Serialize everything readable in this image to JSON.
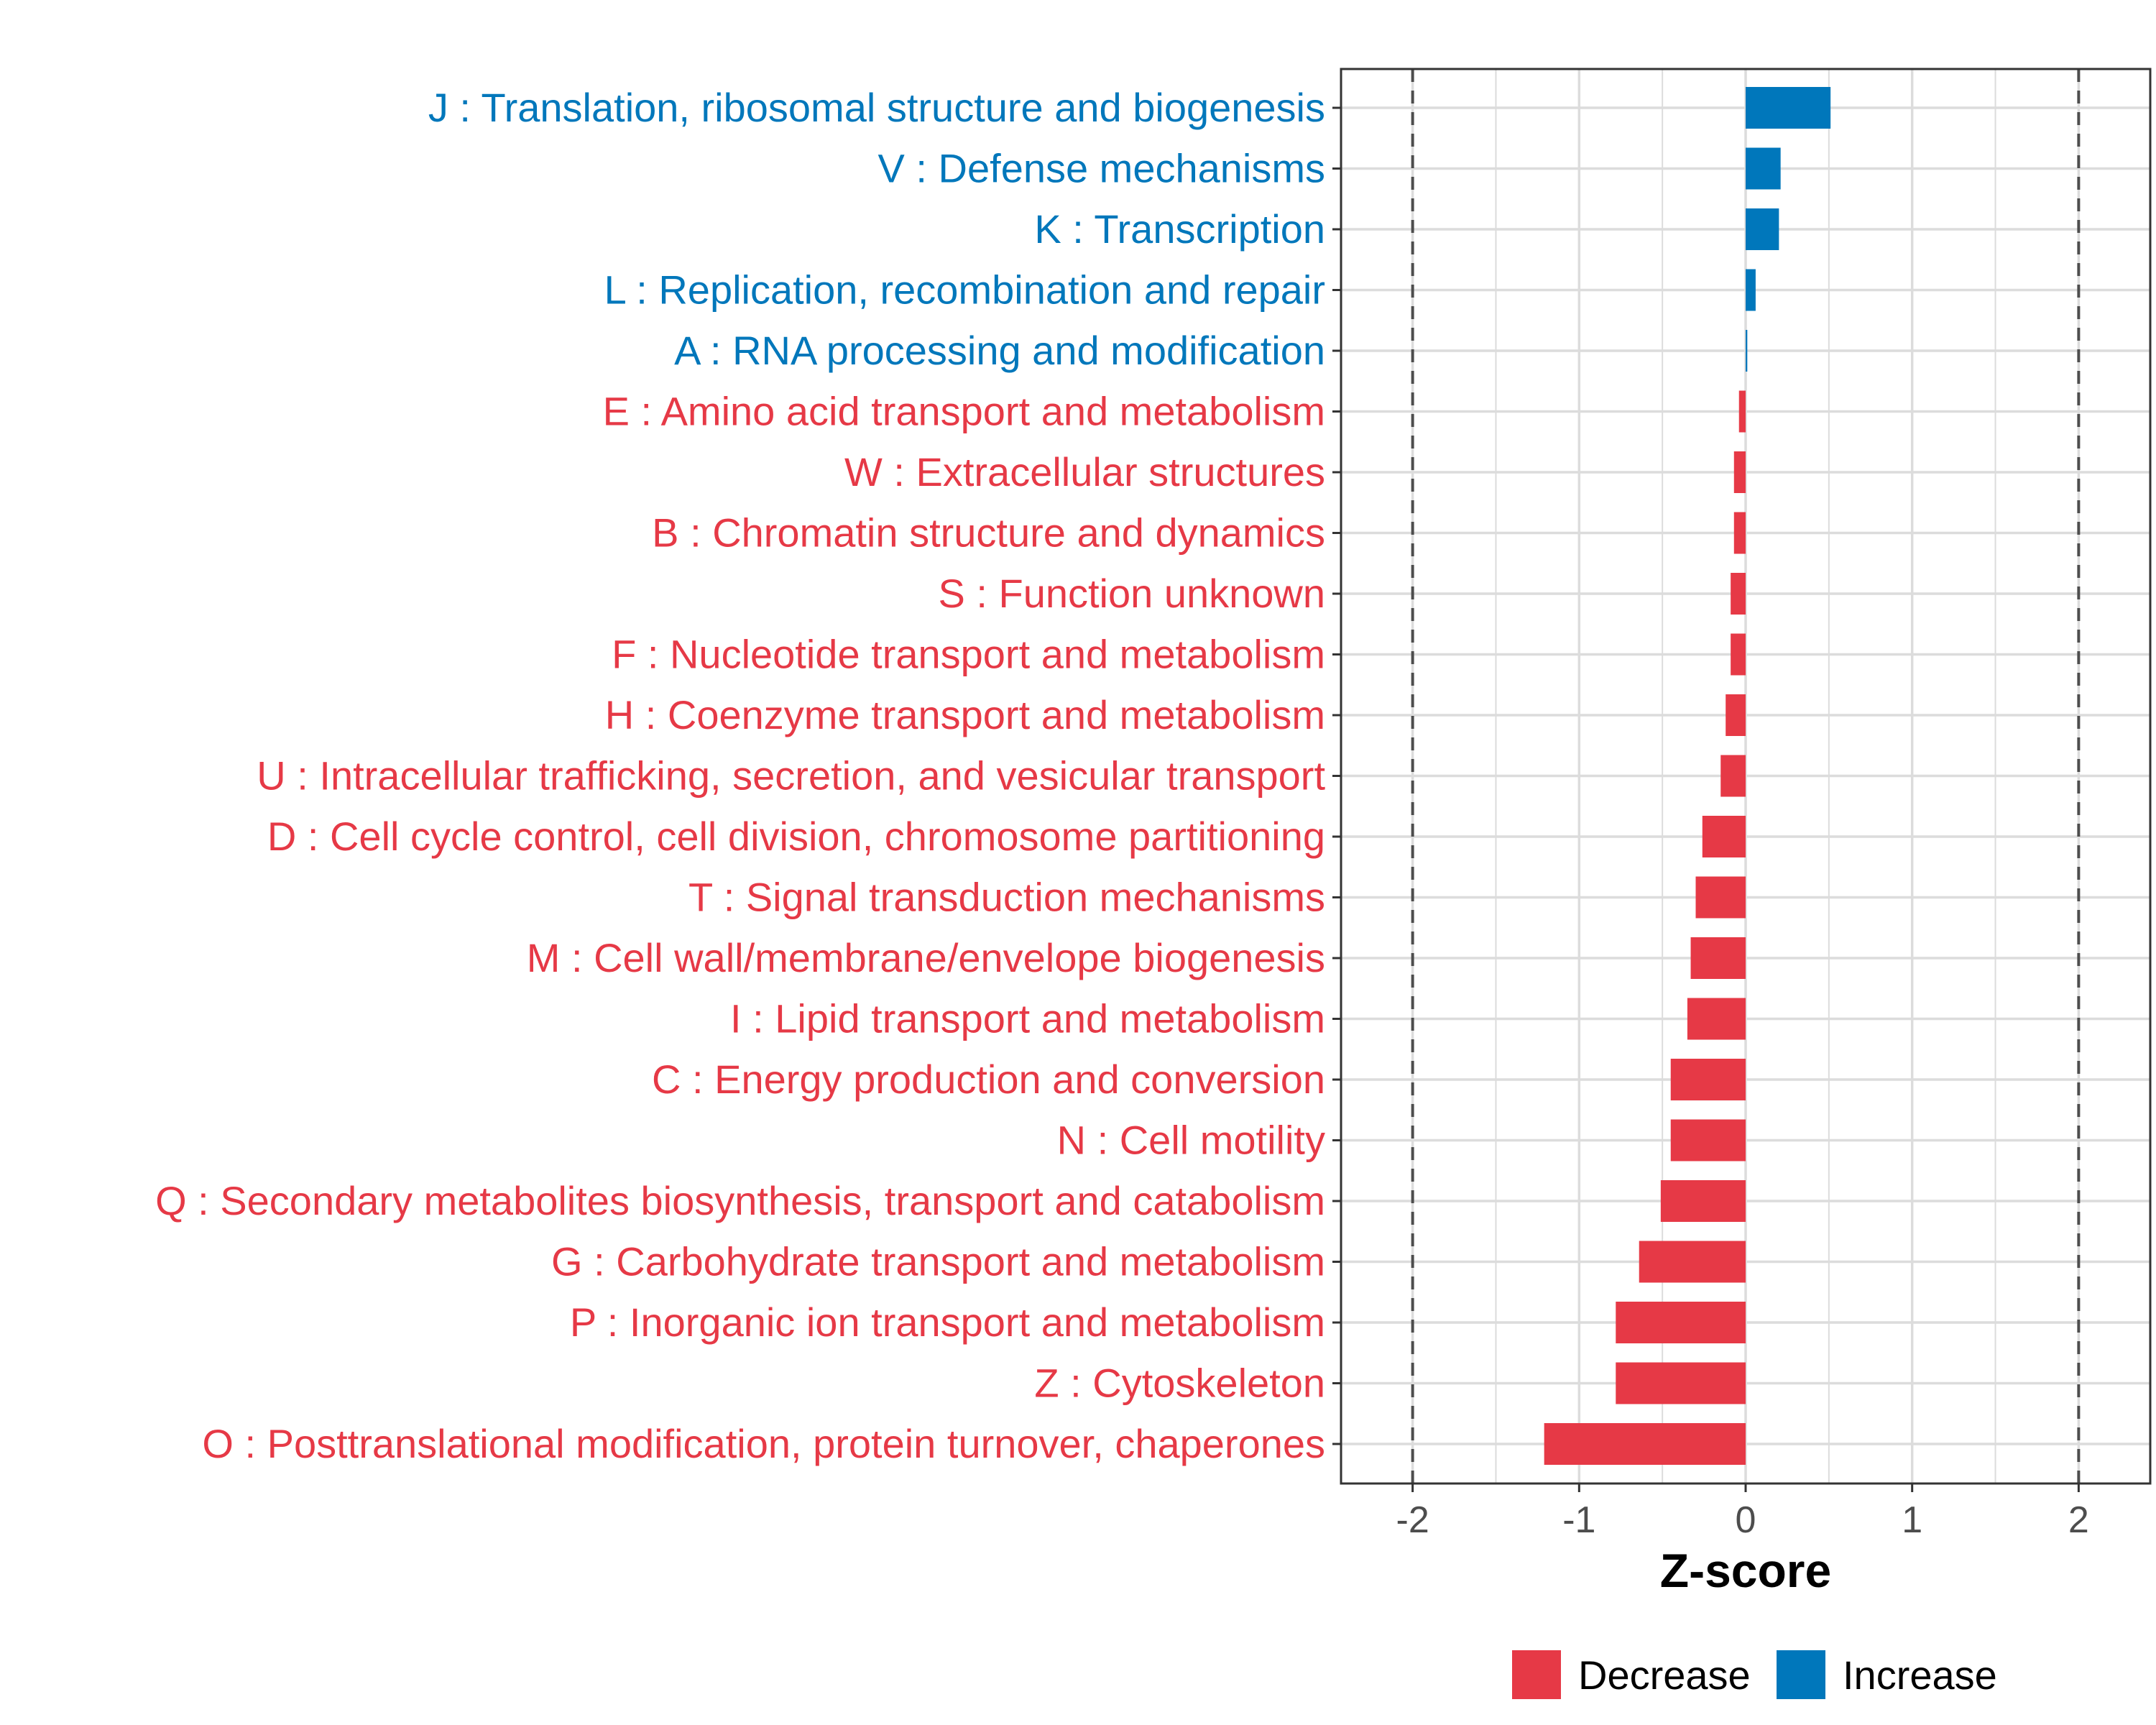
{
  "chart_data": {
    "type": "bar",
    "orientation": "horizontal",
    "xlabel": "Z-score",
    "xlim": [
      -2.43,
      2.43
    ],
    "xticks": [
      -2,
      -1,
      0,
      1,
      2
    ],
    "xtick_labels": [
      "-2",
      "-1",
      "0",
      "1",
      "2"
    ],
    "reference_lines": [
      -2,
      2
    ],
    "grid": true,
    "categories": [
      "J : Translation, ribosomal structure and biogenesis",
      "V : Defense mechanisms",
      "K : Transcription",
      "L : Replication, recombination and repair",
      "A : RNA processing and modification",
      "E : Amino acid transport and metabolism",
      "W : Extracellular structures",
      "B : Chromatin structure and dynamics",
      "S : Function unknown",
      "F : Nucleotide transport and metabolism",
      "H : Coenzyme transport and metabolism",
      "U : Intracellular trafficking, secretion, and vesicular transport",
      "D : Cell cycle control, cell division, chromosome partitioning",
      "T : Signal transduction mechanisms",
      "M : Cell wall/membrane/envelope biogenesis",
      "I : Lipid transport and metabolism",
      "C : Energy production and conversion",
      "N : Cell motility",
      "Q : Secondary metabolites biosynthesis, transport and catabolism",
      "G : Carbohydrate transport and metabolism",
      "P : Inorganic ion transport and metabolism",
      "Z : Cytoskeleton",
      "O : Posttranslational modification, protein turnover, chaperones"
    ],
    "values": [
      0.51,
      0.21,
      0.2,
      0.06,
      0.01,
      -0.04,
      -0.07,
      -0.07,
      -0.09,
      -0.09,
      -0.12,
      -0.15,
      -0.26,
      -0.3,
      -0.33,
      -0.35,
      -0.45,
      -0.45,
      -0.51,
      -0.64,
      -0.78,
      -0.78,
      -1.21
    ],
    "groups": [
      "Increase",
      "Increase",
      "Increase",
      "Increase",
      "Increase",
      "Decrease",
      "Decrease",
      "Decrease",
      "Decrease",
      "Decrease",
      "Decrease",
      "Decrease",
      "Decrease",
      "Decrease",
      "Decrease",
      "Decrease",
      "Decrease",
      "Decrease",
      "Decrease",
      "Decrease",
      "Decrease",
      "Decrease",
      "Decrease"
    ],
    "legend": {
      "position": "bottom",
      "entries": [
        {
          "label": "Decrease",
          "color": "#E63946"
        },
        {
          "label": "Increase",
          "color": "#0077BB"
        }
      ]
    },
    "colors": {
      "Decrease": "#E63946",
      "Increase": "#0077BB"
    }
  }
}
